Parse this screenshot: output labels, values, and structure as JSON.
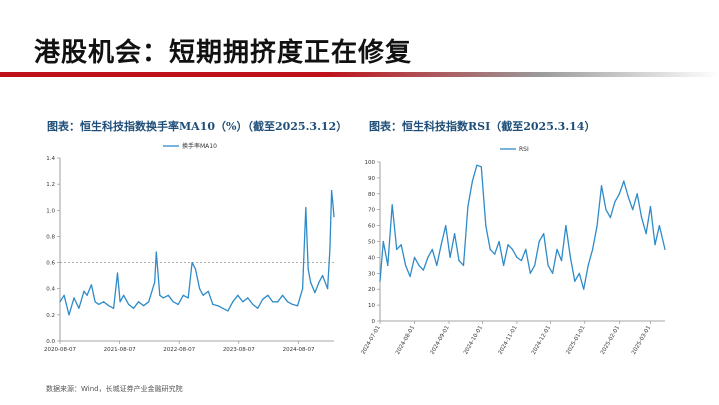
{
  "slide": {
    "title": "港股机会：短期拥挤度正在修复",
    "source_note": "数据来源：Wind，长城证券产业金融研究院"
  },
  "colors": {
    "accent": "#c0101a",
    "series": "#2e8bc8",
    "refline": "#7f7f7f"
  },
  "chart_data": [
    {
      "type": "line",
      "caption": "图表：恒生科技指数换手率MA10（%）（截至2025.3.12）",
      "legend": "换手率MA10",
      "legend_position": "top-center",
      "ylim": [
        0,
        1.4
      ],
      "yticks": [
        "0.0",
        "0.2",
        "0.4",
        "0.6",
        "0.8",
        "1.0",
        "1.2",
        "1.4"
      ],
      "xlim": [
        "2020-08-07",
        "2025-03-12"
      ],
      "xticks": [
        "2020-08-07",
        "2021-08-07",
        "2022-08-07",
        "2023-08-07",
        "2024-08-07"
      ],
      "reference_line": 0.6,
      "grid": false,
      "x": [
        "2020-08-07",
        "2020-09-01",
        "2020-10-01",
        "2020-11-01",
        "2020-12-01",
        "2021-01-01",
        "2021-01-20",
        "2021-02-15",
        "2021-03-10",
        "2021-04-01",
        "2021-05-01",
        "2021-06-01",
        "2021-07-01",
        "2021-07-25",
        "2021-08-10",
        "2021-09-01",
        "2021-10-01",
        "2021-11-01",
        "2021-12-01",
        "2022-01-01",
        "2022-02-01",
        "2022-03-10",
        "2022-03-20",
        "2022-04-10",
        "2022-05-01",
        "2022-06-01",
        "2022-07-01",
        "2022-08-01",
        "2022-09-01",
        "2022-10-01",
        "2022-10-25",
        "2022-11-15",
        "2022-12-10",
        "2023-01-01",
        "2023-02-01",
        "2023-03-01",
        "2023-04-01",
        "2023-05-01",
        "2023-06-01",
        "2023-07-01",
        "2023-08-01",
        "2023-09-01",
        "2023-10-01",
        "2023-11-01",
        "2023-12-01",
        "2024-01-01",
        "2024-02-01",
        "2024-03-01",
        "2024-04-01",
        "2024-05-01",
        "2024-06-01",
        "2024-07-01",
        "2024-08-01",
        "2024-09-01",
        "2024-09-20",
        "2024-10-05",
        "2024-10-20",
        "2024-11-15",
        "2024-12-10",
        "2025-01-01",
        "2025-02-01",
        "2025-02-15",
        "2025-02-25",
        "2025-03-05",
        "2025-03-12"
      ],
      "values": [
        0.3,
        0.35,
        0.2,
        0.33,
        0.25,
        0.38,
        0.35,
        0.43,
        0.3,
        0.28,
        0.3,
        0.27,
        0.25,
        0.52,
        0.3,
        0.35,
        0.28,
        0.25,
        0.3,
        0.27,
        0.3,
        0.45,
        0.68,
        0.35,
        0.33,
        0.35,
        0.3,
        0.28,
        0.35,
        0.33,
        0.6,
        0.55,
        0.4,
        0.35,
        0.38,
        0.28,
        0.27,
        0.25,
        0.23,
        0.3,
        0.35,
        0.3,
        0.33,
        0.28,
        0.25,
        0.32,
        0.35,
        0.3,
        0.3,
        0.35,
        0.3,
        0.28,
        0.27,
        0.4,
        1.02,
        0.55,
        0.45,
        0.37,
        0.45,
        0.5,
        0.4,
        0.7,
        1.15,
        1.05,
        0.95
      ]
    },
    {
      "type": "line",
      "caption": "图表：恒生科技指数RSI（截至2025.3.14）",
      "legend": "RSI",
      "legend_position": "top-center",
      "ylim": [
        0,
        100
      ],
      "yticks": [
        "0",
        "10",
        "20",
        "30",
        "40",
        "50",
        "60",
        "70",
        "80",
        "90",
        "100"
      ],
      "xlim": [
        "2024-07-01",
        "2025-03-14"
      ],
      "xticks": [
        "2024-07-01",
        "2024-08-01",
        "2024-09-01",
        "2024-10-01",
        "2024-11-01",
        "2024-12-01",
        "2025-01-01",
        "2025-02-01",
        "2025-03-01"
      ],
      "grid": false,
      "x": [
        "2024-07-01",
        "2024-07-04",
        "2024-07-08",
        "2024-07-12",
        "2024-07-16",
        "2024-07-20",
        "2024-07-24",
        "2024-07-28",
        "2024-08-01",
        "2024-08-05",
        "2024-08-09",
        "2024-08-13",
        "2024-08-17",
        "2024-08-21",
        "2024-08-25",
        "2024-08-29",
        "2024-09-02",
        "2024-09-06",
        "2024-09-10",
        "2024-09-14",
        "2024-09-18",
        "2024-09-22",
        "2024-09-26",
        "2024-09-30",
        "2024-10-04",
        "2024-10-08",
        "2024-10-12",
        "2024-10-16",
        "2024-10-20",
        "2024-10-24",
        "2024-10-28",
        "2024-11-01",
        "2024-11-05",
        "2024-11-09",
        "2024-11-13",
        "2024-11-17",
        "2024-11-21",
        "2024-11-25",
        "2024-11-29",
        "2024-12-03",
        "2024-12-07",
        "2024-12-11",
        "2024-12-15",
        "2024-12-19",
        "2024-12-23",
        "2024-12-27",
        "2024-12-31",
        "2025-01-04",
        "2025-01-08",
        "2025-01-12",
        "2025-01-16",
        "2025-01-20",
        "2025-01-24",
        "2025-01-28",
        "2025-02-01",
        "2025-02-05",
        "2025-02-09",
        "2025-02-13",
        "2025-02-17",
        "2025-02-21",
        "2025-02-25",
        "2025-03-01",
        "2025-03-05",
        "2025-03-09",
        "2025-03-14"
      ],
      "values": [
        25,
        50,
        35,
        73,
        45,
        48,
        35,
        28,
        40,
        35,
        32,
        40,
        45,
        35,
        48,
        60,
        40,
        55,
        38,
        35,
        72,
        88,
        98,
        97,
        60,
        45,
        42,
        50,
        35,
        48,
        45,
        40,
        38,
        45,
        30,
        35,
        50,
        55,
        35,
        30,
        45,
        38,
        60,
        40,
        25,
        30,
        20,
        35,
        45,
        60,
        85,
        70,
        65,
        75,
        80,
        88,
        78,
        70,
        80,
        65,
        55,
        72,
        48,
        60,
        45
      ]
    }
  ]
}
